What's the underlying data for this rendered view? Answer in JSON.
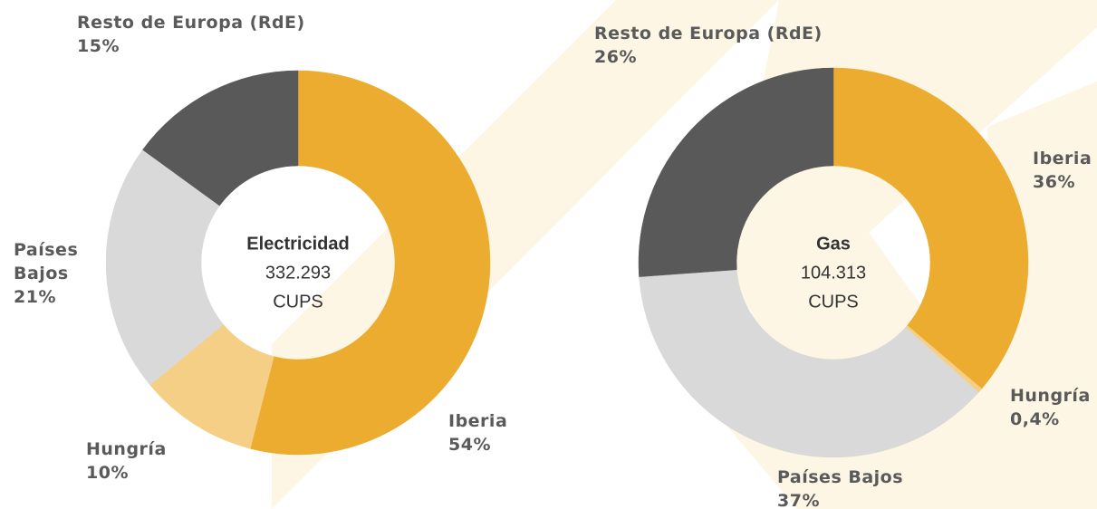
{
  "chart_data": [
    {
      "type": "pie",
      "donut": true,
      "center_lines": [
        "Electricidad",
        "332.293",
        "CUPS"
      ],
      "categories": [
        "Iberia",
        "Hungría",
        "Países Bajos",
        "Resto de Europa (RdE)"
      ],
      "values": [
        54,
        10,
        21,
        15
      ],
      "value_labels": [
        "54%",
        "10%",
        "21%",
        "15%"
      ],
      "colors": [
        "#ecac30",
        "#f5cf85",
        "#d9d9d9",
        "#595959"
      ]
    },
    {
      "type": "pie",
      "donut": true,
      "center_lines": [
        "Gas",
        "104.313",
        "CUPS"
      ],
      "categories": [
        "Iberia",
        "Hungría",
        "Países Bajos",
        "Resto de Europa (RdE)"
      ],
      "values": [
        36,
        0.4,
        37,
        26
      ],
      "value_labels": [
        "36%",
        "0,4%",
        "37%",
        "26%"
      ],
      "colors": [
        "#ecac30",
        "#f5cf85",
        "#d9d9d9",
        "#595959"
      ]
    }
  ]
}
